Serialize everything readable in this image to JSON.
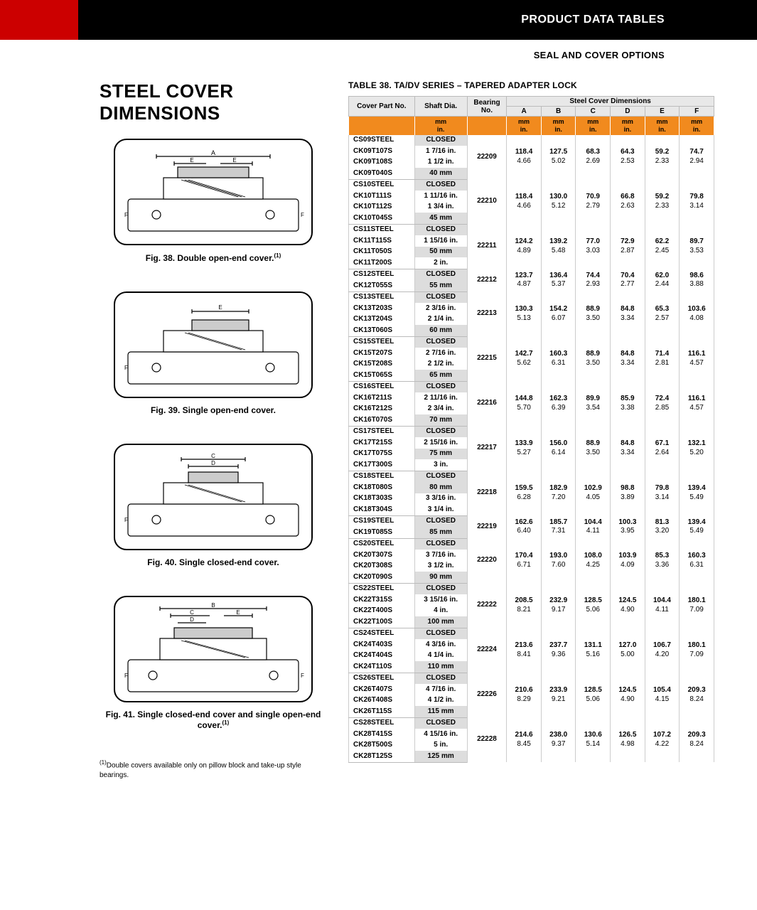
{
  "header": {
    "title": "PRODUCT DATA TABLES",
    "subtitle": "SEAL AND COVER OPTIONS"
  },
  "main_title": "STEEL COVER DIMENSIONS",
  "figures": [
    {
      "caption": "Fig. 38. Double open-end cover."
    },
    {
      "caption": "Fig. 39. Single open-end cover."
    },
    {
      "caption": "Fig. 40. Single closed-end cover."
    },
    {
      "caption": "Fig. 41. Single closed-end cover and single open-end cover."
    }
  ],
  "footnote_marker": "(1)",
  "footnote": "Double covers available only on pillow block and take-up style bearings.",
  "table": {
    "title": "TABLE 38. TA/DV SERIES – TAPERED ADAPTER LOCK",
    "headers": {
      "cover_part": "Cover Part No.",
      "shaft": "Shaft Dia.",
      "bearing": "Bearing No.",
      "steel_group": "Steel Cover Dimensions",
      "dims": [
        "A",
        "B",
        "C",
        "D",
        "E",
        "F"
      ]
    },
    "unit_mm": "mm",
    "unit_in": "in.",
    "groups": [
      {
        "bearing": "22209",
        "rows": [
          {
            "p": "CS09STEEL",
            "s": "CLOSED",
            "sh": true
          },
          {
            "p": "CK09T107S",
            "s": "1 7/16 in."
          },
          {
            "p": "CK09T108S",
            "s": "1 1/2 in."
          },
          {
            "p": "CK09T040S",
            "s": "40 mm",
            "sh": true
          }
        ],
        "mm": [
          "118.4",
          "127.5",
          "68.3",
          "64.3",
          "59.2",
          "74.7"
        ],
        "in": [
          "4.66",
          "5.02",
          "2.69",
          "2.53",
          "2.33",
          "2.94"
        ]
      },
      {
        "bearing": "22210",
        "rows": [
          {
            "p": "CS10STEEL",
            "s": "CLOSED",
            "sh": true
          },
          {
            "p": "CK10T111S",
            "s": "1 11/16 in."
          },
          {
            "p": "CK10T112S",
            "s": "1 3/4 in."
          },
          {
            "p": "CK10T045S",
            "s": "45 mm",
            "sh": true
          }
        ],
        "mm": [
          "118.4",
          "130.0",
          "70.9",
          "66.8",
          "59.2",
          "79.8"
        ],
        "in": [
          "4.66",
          "5.12",
          "2.79",
          "2.63",
          "2.33",
          "3.14"
        ]
      },
      {
        "bearing": "22211",
        "rows": [
          {
            "p": "CS11STEEL",
            "s": "CLOSED",
            "sh": true
          },
          {
            "p": "CK11T115S",
            "s": "1 15/16 in."
          },
          {
            "p": "CK11T050S",
            "s": "50 mm",
            "sh": true
          },
          {
            "p": "CK11T200S",
            "s": "2 in."
          }
        ],
        "mm": [
          "124.2",
          "139.2",
          "77.0",
          "72.9",
          "62.2",
          "89.7"
        ],
        "in": [
          "4.89",
          "5.48",
          "3.03",
          "2.87",
          "2.45",
          "3.53"
        ]
      },
      {
        "bearing": "22212",
        "rows": [
          {
            "p": "CS12STEEL",
            "s": "CLOSED",
            "sh": true
          },
          {
            "p": "CK12T055S",
            "s": "55 mm",
            "sh": true
          }
        ],
        "mm": [
          "123.7",
          "136.4",
          "74.4",
          "70.4",
          "62.0",
          "98.6"
        ],
        "in": [
          "4.87",
          "5.37",
          "2.93",
          "2.77",
          "2.44",
          "3.88"
        ]
      },
      {
        "bearing": "22213",
        "rows": [
          {
            "p": "CS13STEEL",
            "s": "CLOSED",
            "sh": true
          },
          {
            "p": "CK13T203S",
            "s": "2 3/16 in."
          },
          {
            "p": "CK13T204S",
            "s": "2 1/4 in."
          },
          {
            "p": "CK13T060S",
            "s": "60 mm",
            "sh": true
          }
        ],
        "mm": [
          "130.3",
          "154.2",
          "88.9",
          "84.8",
          "65.3",
          "103.6"
        ],
        "in": [
          "5.13",
          "6.07",
          "3.50",
          "3.34",
          "2.57",
          "4.08"
        ]
      },
      {
        "bearing": "22215",
        "rows": [
          {
            "p": "CS15STEEL",
            "s": "CLOSED",
            "sh": true
          },
          {
            "p": "CK15T207S",
            "s": "2 7/16 in."
          },
          {
            "p": "CK15T208S",
            "s": "2 1/2 in."
          },
          {
            "p": "CK15T065S",
            "s": "65 mm",
            "sh": true
          }
        ],
        "mm": [
          "142.7",
          "160.3",
          "88.9",
          "84.8",
          "71.4",
          "116.1"
        ],
        "in": [
          "5.62",
          "6.31",
          "3.50",
          "3.34",
          "2.81",
          "4.57"
        ]
      },
      {
        "bearing": "22216",
        "rows": [
          {
            "p": "CS16STEEL",
            "s": "CLOSED",
            "sh": true
          },
          {
            "p": "CK16T211S",
            "s": "2 11/16 in."
          },
          {
            "p": "CK16T212S",
            "s": "2 3/4 in."
          },
          {
            "p": "CK16T070S",
            "s": "70 mm",
            "sh": true
          }
        ],
        "mm": [
          "144.8",
          "162.3",
          "89.9",
          "85.9",
          "72.4",
          "116.1"
        ],
        "in": [
          "5.70",
          "6.39",
          "3.54",
          "3.38",
          "2.85",
          "4.57"
        ]
      },
      {
        "bearing": "22217",
        "rows": [
          {
            "p": "CS17STEEL",
            "s": "CLOSED",
            "sh": true
          },
          {
            "p": "CK17T215S",
            "s": "2 15/16 in."
          },
          {
            "p": "CK17T075S",
            "s": "75 mm",
            "sh": true
          },
          {
            "p": "CK17T300S",
            "s": "3 in."
          }
        ],
        "mm": [
          "133.9",
          "156.0",
          "88.9",
          "84.8",
          "67.1",
          "132.1"
        ],
        "in": [
          "5.27",
          "6.14",
          "3.50",
          "3.34",
          "2.64",
          "5.20"
        ]
      },
      {
        "bearing": "22218",
        "rows": [
          {
            "p": "CS18STEEL",
            "s": "CLOSED",
            "sh": true
          },
          {
            "p": "CK18T080S",
            "s": "80 mm",
            "sh": true
          },
          {
            "p": "CK18T303S",
            "s": "3 3/16 in."
          },
          {
            "p": "CK18T304S",
            "s": "3 1/4 in."
          }
        ],
        "mm": [
          "159.5",
          "182.9",
          "102.9",
          "98.8",
          "79.8",
          "139.4"
        ],
        "in": [
          "6.28",
          "7.20",
          "4.05",
          "3.89",
          "3.14",
          "5.49"
        ]
      },
      {
        "bearing": "22219",
        "rows": [
          {
            "p": "CS19STEEL",
            "s": "CLOSED",
            "sh": true
          },
          {
            "p": "CK19T085S",
            "s": "85 mm",
            "sh": true
          }
        ],
        "mm": [
          "162.6",
          "185.7",
          "104.4",
          "100.3",
          "81.3",
          "139.4"
        ],
        "in": [
          "6.40",
          "7.31",
          "4.11",
          "3.95",
          "3.20",
          "5.49"
        ]
      },
      {
        "bearing": "22220",
        "rows": [
          {
            "p": "CS20STEEL",
            "s": "CLOSED",
            "sh": true
          },
          {
            "p": "CK20T307S",
            "s": "3 7/16 in."
          },
          {
            "p": "CK20T308S",
            "s": "3 1/2 in."
          },
          {
            "p": "CK20T090S",
            "s": "90 mm",
            "sh": true
          }
        ],
        "mm": [
          "170.4",
          "193.0",
          "108.0",
          "103.9",
          "85.3",
          "160.3"
        ],
        "in": [
          "6.71",
          "7.60",
          "4.25",
          "4.09",
          "3.36",
          "6.31"
        ]
      },
      {
        "bearing": "22222",
        "rows": [
          {
            "p": "CS22STEEL",
            "s": "CLOSED",
            "sh": true
          },
          {
            "p": "CK22T315S",
            "s": "3 15/16 in."
          },
          {
            "p": "CK22T400S",
            "s": "4 in."
          },
          {
            "p": "CK22T100S",
            "s": "100 mm",
            "sh": true
          }
        ],
        "mm": [
          "208.5",
          "232.9",
          "128.5",
          "124.5",
          "104.4",
          "180.1"
        ],
        "in": [
          "8.21",
          "9.17",
          "5.06",
          "4.90",
          "4.11",
          "7.09"
        ]
      },
      {
        "bearing": "22224",
        "rows": [
          {
            "p": "CS24STEEL",
            "s": "CLOSED",
            "sh": true
          },
          {
            "p": "CK24T403S",
            "s": "4 3/16 in."
          },
          {
            "p": "CK24T404S",
            "s": "4 1/4 in."
          },
          {
            "p": "CK24T110S",
            "s": "110 mm",
            "sh": true
          }
        ],
        "mm": [
          "213.6",
          "237.7",
          "131.1",
          "127.0",
          "106.7",
          "180.1"
        ],
        "in": [
          "8.41",
          "9.36",
          "5.16",
          "5.00",
          "4.20",
          "7.09"
        ]
      },
      {
        "bearing": "22226",
        "rows": [
          {
            "p": "CS26STEEL",
            "s": "CLOSED",
            "sh": true
          },
          {
            "p": "CK26T407S",
            "s": "4 7/16 in."
          },
          {
            "p": "CK26T408S",
            "s": "4 1/2 in."
          },
          {
            "p": "CK26T115S",
            "s": "115 mm",
            "sh": true
          }
        ],
        "mm": [
          "210.6",
          "233.9",
          "128.5",
          "124.5",
          "105.4",
          "209.3"
        ],
        "in": [
          "8.29",
          "9.21",
          "5.06",
          "4.90",
          "4.15",
          "8.24"
        ]
      },
      {
        "bearing": "22228",
        "rows": [
          {
            "p": "CS28STEEL",
            "s": "CLOSED",
            "sh": true
          },
          {
            "p": "CK28T415S",
            "s": "4 15/16 in."
          },
          {
            "p": "CK28T500S",
            "s": "5 in."
          },
          {
            "p": "CK28T125S",
            "s": "125 mm",
            "sh": true
          }
        ],
        "mm": [
          "214.6",
          "238.0",
          "130.6",
          "126.5",
          "107.2",
          "209.3"
        ],
        "in": [
          "8.45",
          "9.37",
          "5.14",
          "4.98",
          "4.22",
          "8.24"
        ]
      }
    ]
  }
}
